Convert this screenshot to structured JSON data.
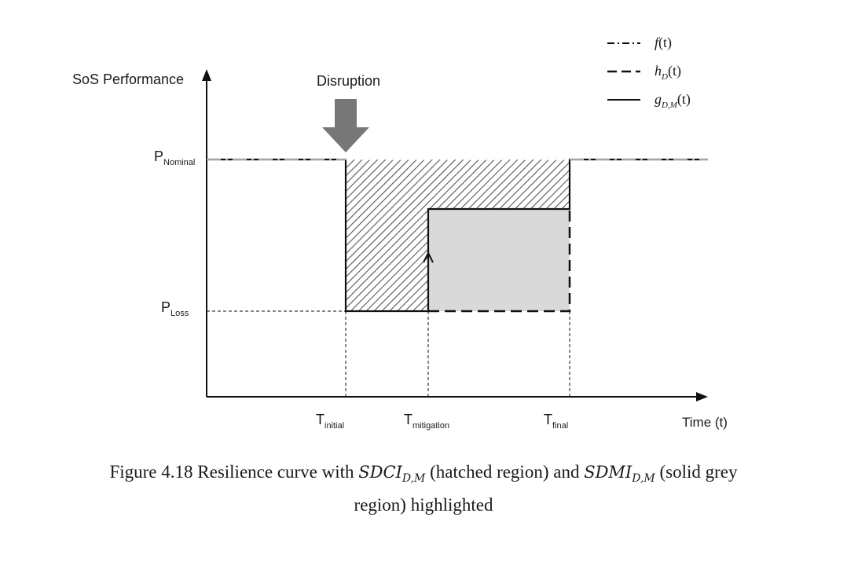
{
  "diagram": {
    "y_axis_label": "SoS Performance",
    "x_axis_label": "Time (t)",
    "disruption_label": "Disruption",
    "y_levels": [
      {
        "base": "P",
        "sub": "Nominal"
      },
      {
        "base": "P",
        "sub": "Loss"
      }
    ],
    "x_marks": [
      {
        "base": "T",
        "sub": "initial"
      },
      {
        "base": "T",
        "sub": "mitigation"
      },
      {
        "base": "T",
        "sub": "final"
      }
    ],
    "legend": [
      {
        "style": "dash-dot",
        "func": "f",
        "sub": "",
        "arg": "(t)"
      },
      {
        "style": "dashed",
        "func": "h",
        "sub": "D",
        "arg": "(t)"
      },
      {
        "style": "solid",
        "func": "g",
        "sub": "D,M",
        "arg": "(t)"
      }
    ],
    "colors": {
      "line": "#111111",
      "arrow": "#777777",
      "grey_region": "#d9d9d9",
      "hatch": "#555555"
    }
  },
  "caption": {
    "prefix": "Figure 4.18 Resilience curve with ",
    "m1": "SDCI",
    "m1_sub": "D,M",
    "mid": " (hatched region) and ",
    "m2": "SDMI",
    "m2_sub": "D,M",
    "suffix_line1": " (solid grey",
    "line2": "region) highlighted"
  }
}
